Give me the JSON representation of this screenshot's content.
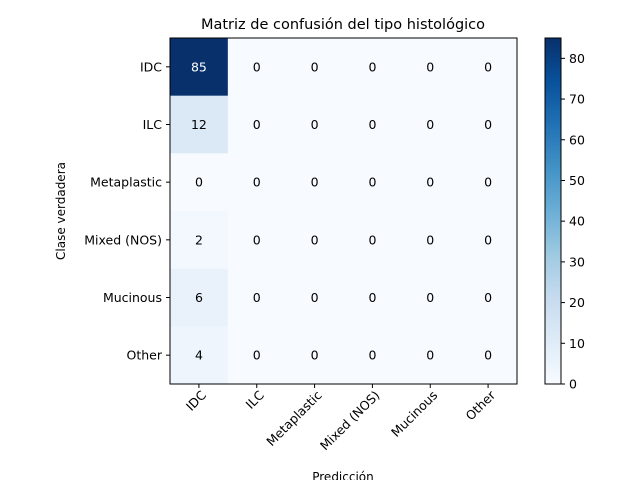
{
  "chart_data": {
    "type": "heatmap",
    "title": "Matriz de confusión del tipo histológico",
    "xlabel": "Predicción",
    "ylabel": "Clase verdadera",
    "row_labels": [
      "IDC",
      "ILC",
      "Metaplastic",
      "Mixed (NOS)",
      "Mucinous",
      "Other"
    ],
    "col_labels": [
      "IDC",
      "ILC",
      "Metaplastic",
      "Mixed (NOS)",
      "Mucinous",
      "Other"
    ],
    "matrix": [
      [
        85,
        0,
        0,
        0,
        0,
        0
      ],
      [
        12,
        0,
        0,
        0,
        0,
        0
      ],
      [
        0,
        0,
        0,
        0,
        0,
        0
      ],
      [
        2,
        0,
        0,
        0,
        0,
        0
      ],
      [
        6,
        0,
        0,
        0,
        0,
        0
      ],
      [
        4,
        0,
        0,
        0,
        0,
        0
      ]
    ],
    "colormap": "Blues",
    "colorbar": {
      "range": [
        0,
        85
      ],
      "ticks": [
        0,
        10,
        20,
        30,
        40,
        50,
        60,
        70,
        80
      ]
    }
  }
}
